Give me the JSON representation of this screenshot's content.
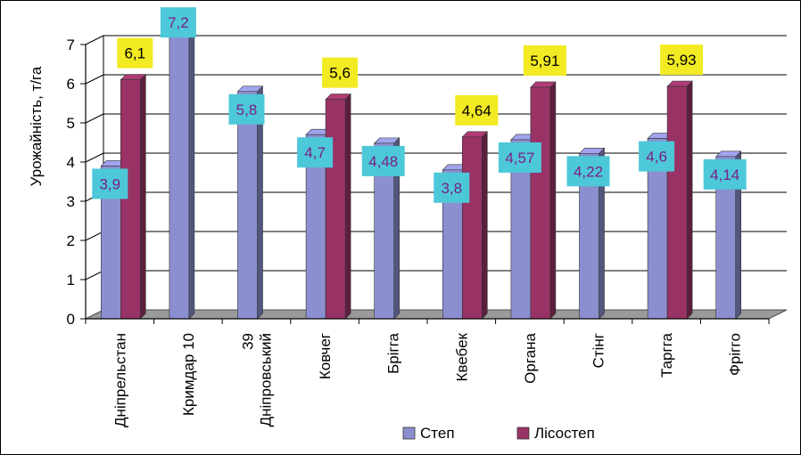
{
  "chart_data": {
    "type": "bar",
    "title": "",
    "xlabel": "",
    "ylabel": "Урожайність, т/га",
    "ylim": [
      0,
      7
    ],
    "yticks": [
      "0",
      "1",
      "2",
      "3",
      "4",
      "5",
      "6",
      "7"
    ],
    "grid": true,
    "legend_position": "bottom",
    "categories": [
      "Дніпрельстан",
      "Кримдар 10",
      "Дніпровський 39",
      "Ковчег",
      "Брігга",
      "Квебек",
      "Органа",
      "Стінг",
      "Таргга",
      "Фріггo"
    ],
    "category_labels": [
      [
        "Дніпрельстан"
      ],
      [
        "Кримдар 10"
      ],
      [
        "Дніпровський",
        "39"
      ],
      [
        "Ковчег"
      ],
      [
        "Брігга"
      ],
      [
        "Квебек"
      ],
      [
        "Органа"
      ],
      [
        "Стінг"
      ],
      [
        "Таргга"
      ],
      [
        "Фріггo"
      ]
    ],
    "series": [
      {
        "name": "Степ",
        "color": "#8b8fcf",
        "values": [
          3.9,
          7.2,
          5.8,
          4.7,
          4.48,
          3.8,
          4.57,
          4.22,
          4.6,
          4.14
        ],
        "labels": [
          "3,9",
          "7,2",
          "5,8",
          "4,7",
          "4,48",
          "3,8",
          "4,57",
          "4,22",
          "4,6",
          "4,14"
        ],
        "label_bg": "#4dc8d9",
        "label_color": "#7a1f86"
      },
      {
        "name": "Лісостеп",
        "color": "#993366",
        "values": [
          6.1,
          null,
          null,
          5.6,
          null,
          4.64,
          5.91,
          null,
          5.93,
          null
        ],
        "labels": [
          "6,1",
          "",
          "",
          "5,6",
          "",
          "4,64",
          "5,91",
          "",
          "5,93",
          ""
        ],
        "label_bg": "#f2ea22",
        "label_color": "#000000"
      }
    ]
  }
}
